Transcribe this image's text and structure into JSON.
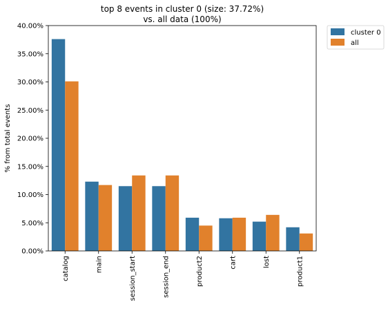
{
  "chart_data": {
    "type": "bar",
    "title": "top 8 events in cluster 0 (size: 37.72%)",
    "subtitle": "vs. all data (100%)",
    "xlabel": "",
    "ylabel": "% from total events",
    "categories": [
      "catalog",
      "main",
      "session_start",
      "session_end",
      "product2",
      "cart",
      "lost",
      "product1"
    ],
    "series": [
      {
        "name": "cluster 0",
        "color": "#3274a1",
        "values": [
          37.6,
          12.3,
          11.5,
          11.5,
          5.9,
          5.8,
          5.2,
          4.2
        ]
      },
      {
        "name": "all",
        "color": "#e1812c",
        "values": [
          30.1,
          11.7,
          13.4,
          13.4,
          4.5,
          5.9,
          6.4,
          3.1
        ]
      }
    ],
    "ylim": [
      0,
      40
    ],
    "yticks": [
      0,
      5,
      10,
      15,
      20,
      25,
      30,
      35,
      40
    ],
    "ytick_labels": [
      "0.00%",
      "5.00%",
      "10.00%",
      "15.00%",
      "20.00%",
      "25.00%",
      "30.00%",
      "35.00%",
      "40.00%"
    ],
    "grid": false,
    "legend_position": "outside-top-right"
  }
}
